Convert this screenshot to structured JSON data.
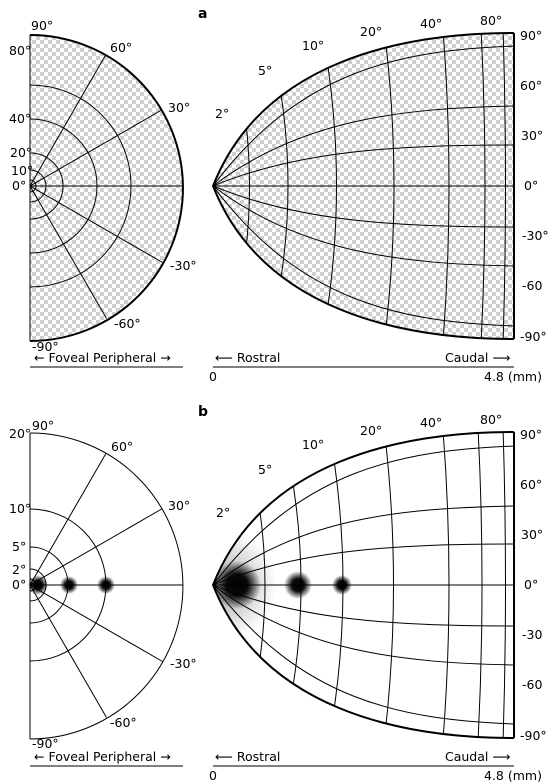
{
  "panels": [
    {
      "letter": "a",
      "visual": {
        "ecc_labels": [
          "0°",
          "10°",
          "20°",
          "40°",
          "80°"
        ],
        "polar_labels": [
          "90°",
          "60°",
          "30°",
          "-30°",
          "-60°",
          "-90°"
        ],
        "axis_label": "← Foveal Peripheral →"
      },
      "collicular": {
        "ecc_labels": [
          "2°",
          "5°",
          "10°",
          "20°",
          "40°",
          "80°"
        ],
        "polar_labels": [
          "90°",
          "60°",
          "30°",
          "0°",
          "-30°",
          "-60",
          "-90°"
        ],
        "axis_left": "⟵ Rostral",
        "axis_right": "Caudal ⟶",
        "scale_start": "0",
        "scale_end": "4.8 (mm)"
      }
    },
    {
      "letter": "b",
      "visual": {
        "ecc_labels": [
          "0°",
          "2°",
          "5°",
          "10°",
          "20°"
        ],
        "polar_labels": [
          "90°",
          "60°",
          "30°",
          "-30°",
          "-60°",
          "-90°"
        ],
        "axis_label": "← Foveal Peripheral →"
      },
      "collicular": {
        "ecc_labels": [
          "2°",
          "5°",
          "10°",
          "20°",
          "40°",
          "80°"
        ],
        "polar_labels": [
          "90°",
          "60°",
          "30°",
          "0°",
          "-30",
          "-60",
          "-90°"
        ],
        "axis_left": "⟵ Rostral",
        "axis_right": "Caudal ⟶",
        "scale_start": "0",
        "scale_end": "4.8 (mm)"
      }
    }
  ]
}
